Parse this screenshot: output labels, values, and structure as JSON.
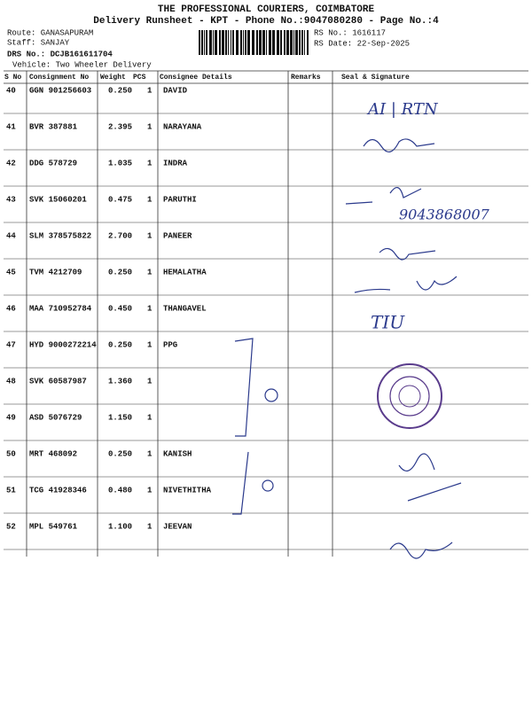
{
  "header": {
    "title": "THE PROFESSIONAL COURIERS, COIMBATORE",
    "subtitle": "Delivery Runsheet - KPT - Phone No.:9047080280 - Page No.:4",
    "route": "Route: GANASAPURAM",
    "staff": "Staff: SANJAY",
    "drs": "DRS No.: DCJB161611704",
    "vehicle": "Vehicle: Two Wheeler Delivery",
    "rs_no": "RS No.: 1616117",
    "rs_date": "RS Date: 22-Sep-2025"
  },
  "table": {
    "columns": [
      "S No",
      "Consignment No",
      "Weight",
      "PCS",
      "Consignee Details",
      "Remarks",
      "Seal & Signature"
    ],
    "rows": [
      {
        "sno": 40,
        "consignment": "GGN 901256603",
        "weight": "0.250",
        "pcs": 1,
        "consignee": "DAVID"
      },
      {
        "sno": 41,
        "consignment": "BVR 387881",
        "weight": "2.395",
        "pcs": 1,
        "consignee": "NARAYANA"
      },
      {
        "sno": 42,
        "consignment": "DDG 578729",
        "weight": "1.035",
        "pcs": 1,
        "consignee": "INDRA"
      },
      {
        "sno": 43,
        "consignment": "SVK 15060201",
        "weight": "0.475",
        "pcs": 1,
        "consignee": "PARUTHI"
      },
      {
        "sno": 44,
        "consignment": "SLM 378575822",
        "weight": "2.700",
        "pcs": 1,
        "consignee": "PANEER"
      },
      {
        "sno": 45,
        "consignment": "TVM 4212709",
        "weight": "0.250",
        "pcs": 1,
        "consignee": "HEMALATHA"
      },
      {
        "sno": 46,
        "consignment": "MAA 710952784",
        "weight": "0.450",
        "pcs": 1,
        "consignee": "THANGAVEL"
      },
      {
        "sno": 47,
        "consignment": "HYD 9000272214",
        "weight": "0.250",
        "pcs": 1,
        "consignee": "PPG"
      },
      {
        "sno": 48,
        "consignment": "SVK 60587987",
        "weight": "1.360",
        "pcs": 1
      },
      {
        "sno": 49,
        "consignment": "ASD 5076729",
        "weight": "1.150",
        "pcs": 1
      },
      {
        "sno": 50,
        "consignment": "MRT 468092",
        "weight": "0.250",
        "pcs": 1,
        "consignee": "KANISH"
      },
      {
        "sno": 51,
        "consignment": "TCG 41928346",
        "weight": "0.480",
        "pcs": 1,
        "consignee": "NIVETHITHA"
      },
      {
        "sno": 52,
        "consignment": "MPL 549761",
        "weight": "1.100",
        "pcs": 1,
        "consignee": "JEEVAN"
      }
    ]
  },
  "handwriting": {
    "row40": "AI | RTN",
    "row43": "9043868007",
    "row46": "TIU"
  }
}
